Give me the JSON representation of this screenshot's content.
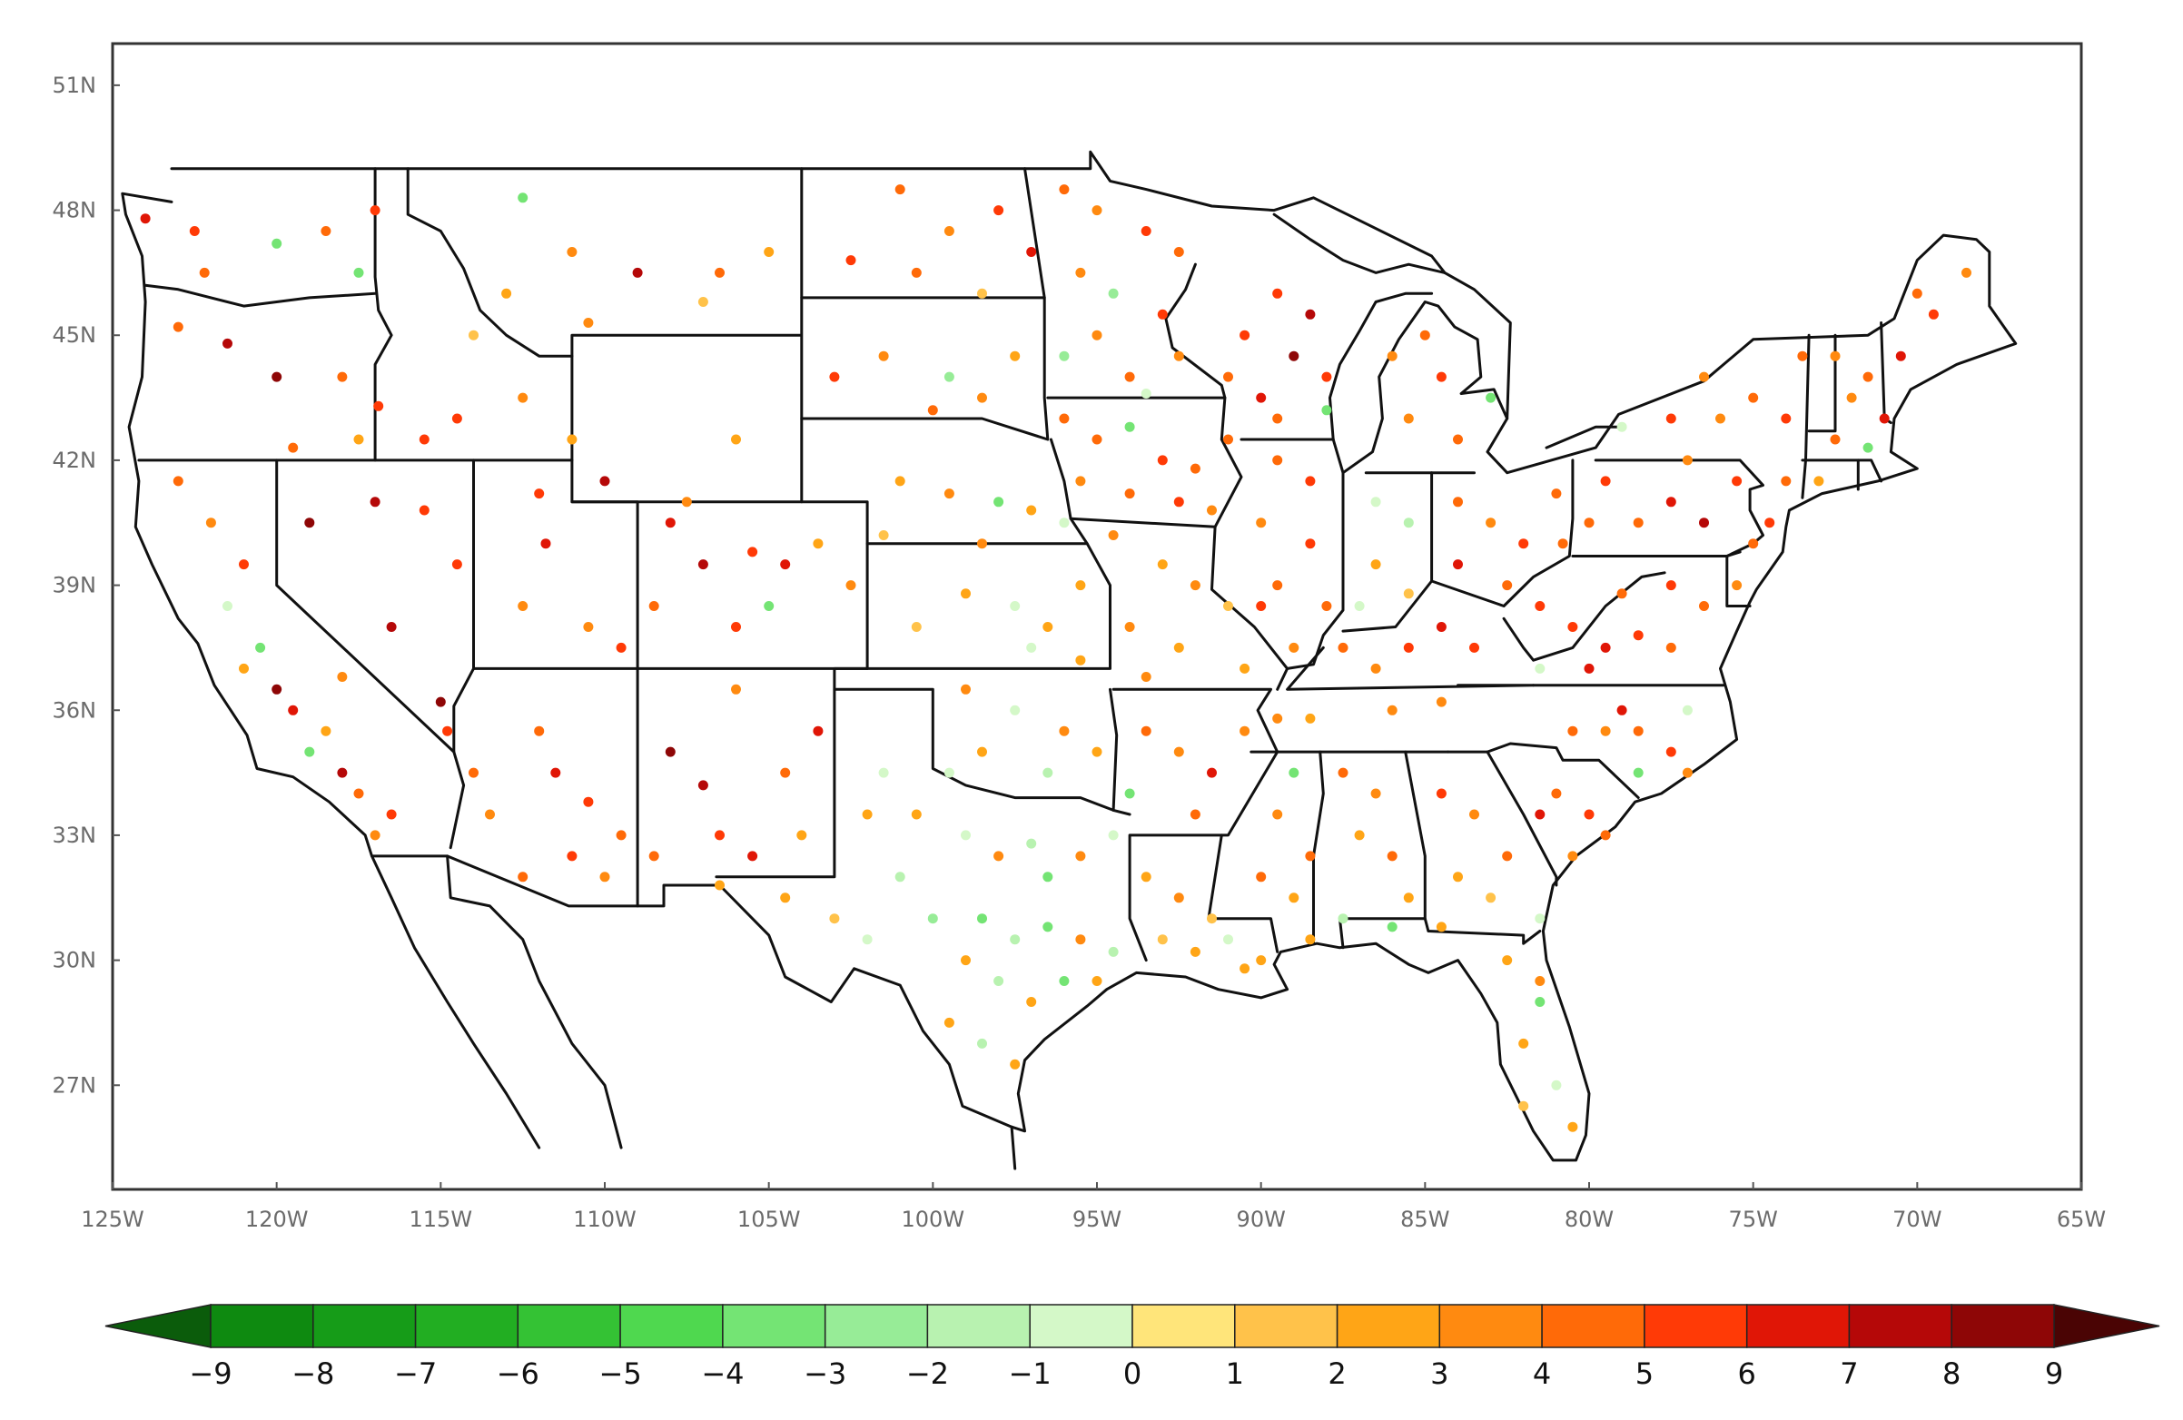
{
  "map": {
    "lat_ticks": [
      "51N",
      "48N",
      "45N",
      "42N",
      "39N",
      "36N",
      "33N",
      "30N",
      "27N"
    ],
    "lat_values": [
      51,
      48,
      45,
      42,
      39,
      36,
      33,
      30,
      27
    ],
    "lon_ticks": [
      "125W",
      "120W",
      "115W",
      "110W",
      "105W",
      "100W",
      "95W",
      "90W",
      "85W",
      "80W",
      "75W",
      "70W",
      "65W"
    ],
    "lon_values": [
      -125,
      -120,
      -115,
      -110,
      -105,
      -100,
      -95,
      -90,
      -85,
      -80,
      -75,
      -70,
      -65
    ],
    "extent": {
      "lon": [
        -125,
        -65
      ],
      "lat": [
        24.5,
        52
      ]
    }
  },
  "colorbar": {
    "labels": [
      "−9",
      "−8",
      "−7",
      "−6",
      "−5",
      "−4",
      "−3",
      "−2",
      "−1",
      "0",
      "1",
      "2",
      "3",
      "4",
      "5",
      "6",
      "7",
      "8",
      "9"
    ],
    "end_colors": [
      "#0b5c0b",
      "#4a0404"
    ],
    "colors": [
      "#0e8a10",
      "#169c18",
      "#22ae22",
      "#34c234",
      "#4fd84f",
      "#74e474",
      "#97ec97",
      "#b8f2b0",
      "#d4f8c8",
      "#ffe57a",
      "#ffc24a",
      "#ffa516",
      "#ff8a10",
      "#ff6a08",
      "#ff3a06",
      "#e01606",
      "#b50808",
      "#8e0606"
    ]
  },
  "stations": [
    [
      -124.0,
      47.8,
      6
    ],
    [
      -122.5,
      47.5,
      5
    ],
    [
      -122.2,
      46.5,
      4
    ],
    [
      -120.0,
      47.2,
      -4
    ],
    [
      -118.5,
      47.5,
      4
    ],
    [
      -117.5,
      46.5,
      -4
    ],
    [
      -117.0,
      48.0,
      5
    ],
    [
      -123.0,
      45.2,
      4
    ],
    [
      -121.5,
      44.8,
      7
    ],
    [
      -120.0,
      44.0,
      8
    ],
    [
      -118.0,
      44.0,
      4
    ],
    [
      -116.9,
      43.3,
      5
    ],
    [
      -115.5,
      42.5,
      5
    ],
    [
      -117.5,
      42.5,
      2
    ],
    [
      -119.5,
      42.3,
      4
    ],
    [
      -112.5,
      48.3,
      -4
    ],
    [
      -111.0,
      47.0,
      3
    ],
    [
      -109.0,
      46.5,
      7
    ],
    [
      -106.5,
      46.5,
      4
    ],
    [
      -105.0,
      47.0,
      2
    ],
    [
      -107.0,
      45.8,
      1
    ],
    [
      -110.5,
      45.3,
      3
    ],
    [
      -113.0,
      46.0,
      2
    ],
    [
      -114.0,
      45.0,
      1
    ],
    [
      -112.5,
      43.5,
      3
    ],
    [
      -114.5,
      43.0,
      5
    ],
    [
      -111.0,
      42.5,
      2
    ],
    [
      -110.0,
      41.5,
      7
    ],
    [
      -107.5,
      41.0,
      3
    ],
    [
      -106.0,
      42.5,
      2
    ],
    [
      -123.0,
      41.5,
      4
    ],
    [
      -122.0,
      40.5,
      3
    ],
    [
      -121.0,
      39.5,
      5
    ],
    [
      -121.5,
      38.5,
      -1
    ],
    [
      -120.5,
      37.5,
      -4
    ],
    [
      -120.0,
      36.5,
      8
    ],
    [
      -119.5,
      36.0,
      6
    ],
    [
      -118.5,
      35.5,
      2
    ],
    [
      -118.0,
      34.5,
      7
    ],
    [
      -117.5,
      34.0,
      4
    ],
    [
      -116.5,
      33.5,
      5
    ],
    [
      -117.0,
      33.0,
      3
    ],
    [
      -119.0,
      35.0,
      -4
    ],
    [
      -118.0,
      36.8,
      3
    ],
    [
      -121.0,
      37.0,
      2
    ],
    [
      -119.0,
      40.5,
      8
    ],
    [
      -117.0,
      41.0,
      7
    ],
    [
      -115.5,
      40.8,
      5
    ],
    [
      -114.5,
      39.5,
      5
    ],
    [
      -116.5,
      38.0,
      7
    ],
    [
      -115.0,
      36.2,
      8
    ],
    [
      -114.8,
      35.5,
      5
    ],
    [
      -112.0,
      41.2,
      5
    ],
    [
      -111.8,
      40.0,
      6
    ],
    [
      -112.5,
      38.5,
      3
    ],
    [
      -110.5,
      38.0,
      3
    ],
    [
      -109.5,
      37.5,
      5
    ],
    [
      -112.0,
      35.5,
      4
    ],
    [
      -111.5,
      34.5,
      6
    ],
    [
      -110.5,
      33.8,
      5
    ],
    [
      -109.5,
      33.0,
      4
    ],
    [
      -111.0,
      32.5,
      5
    ],
    [
      -112.5,
      32.0,
      4
    ],
    [
      -110.0,
      32.0,
      3
    ],
    [
      -113.5,
      33.5,
      3
    ],
    [
      -114.0,
      34.5,
      4
    ],
    [
      -108.0,
      35.0,
      8
    ],
    [
      -107.0,
      34.2,
      7
    ],
    [
      -106.5,
      33.0,
      5
    ],
    [
      -105.5,
      32.5,
      6
    ],
    [
      -104.5,
      34.5,
      4
    ],
    [
      -103.5,
      35.5,
      6
    ],
    [
      -106.0,
      36.5,
      3
    ],
    [
      -104.0,
      33.0,
      2
    ],
    [
      -108.5,
      32.5,
      4
    ],
    [
      -108.0,
      40.5,
      6
    ],
    [
      -107.0,
      39.5,
      7
    ],
    [
      -105.5,
      39.8,
      5
    ],
    [
      -105.0,
      38.5,
      -4
    ],
    [
      -104.5,
      39.5,
      6
    ],
    [
      -103.5,
      40.0,
      2
    ],
    [
      -102.5,
      39.0,
      3
    ],
    [
      -106.0,
      38.0,
      5
    ],
    [
      -108.5,
      38.5,
      4
    ],
    [
      -101.0,
      48.5,
      4
    ],
    [
      -99.5,
      47.5,
      3
    ],
    [
      -98.0,
      48.0,
      5
    ],
    [
      -97.0,
      47.0,
      6
    ],
    [
      -100.5,
      46.5,
      4
    ],
    [
      -102.5,
      46.8,
      5
    ],
    [
      -98.5,
      46.0,
      1
    ],
    [
      -101.5,
      44.5,
      3
    ],
    [
      -99.5,
      44.0,
      -3
    ],
    [
      -98.5,
      43.5,
      3
    ],
    [
      -97.5,
      44.5,
      2
    ],
    [
      -103.0,
      44.0,
      5
    ],
    [
      -100.0,
      43.2,
      4
    ],
    [
      -101.0,
      41.5,
      2
    ],
    [
      -99.5,
      41.2,
      3
    ],
    [
      -98.0,
      41.0,
      -4
    ],
    [
      -97.0,
      40.8,
      2
    ],
    [
      -96.0,
      40.5,
      -1
    ],
    [
      -101.5,
      40.2,
      1
    ],
    [
      -98.5,
      40.0,
      3
    ],
    [
      -99.0,
      38.8,
      2
    ],
    [
      -97.5,
      38.5,
      -1
    ],
    [
      -96.5,
      38.0,
      2
    ],
    [
      -95.5,
      39.0,
      2
    ],
    [
      -100.5,
      38.0,
      1
    ],
    [
      -97.0,
      37.5,
      -1
    ],
    [
      -95.5,
      37.2,
      2
    ],
    [
      -99.0,
      36.5,
      3
    ],
    [
      -97.5,
      36.0,
      -1
    ],
    [
      -96.0,
      35.5,
      3
    ],
    [
      -95.0,
      35.0,
      2
    ],
    [
      -98.5,
      35.0,
      2
    ],
    [
      -99.5,
      34.5,
      -1
    ],
    [
      -96.5,
      34.5,
      -2
    ],
    [
      -101.5,
      34.5,
      -1
    ],
    [
      -100.5,
      33.5,
      2
    ],
    [
      -99.0,
      33.0,
      -1
    ],
    [
      -98.0,
      32.5,
      3
    ],
    [
      -97.0,
      32.8,
      -2
    ],
    [
      -96.5,
      32.0,
      -4
    ],
    [
      -95.5,
      32.5,
      3
    ],
    [
      -94.5,
      33.0,
      -1
    ],
    [
      -101.0,
      32.0,
      -2
    ],
    [
      -102.0,
      33.5,
      2
    ],
    [
      -100.0,
      31.0,
      -3
    ],
    [
      -98.5,
      31.0,
      -4
    ],
    [
      -97.5,
      30.5,
      -2
    ],
    [
      -96.5,
      30.8,
      -4
    ],
    [
      -95.5,
      30.5,
      3
    ],
    [
      -94.5,
      30.2,
      -2
    ],
    [
      -99.0,
      30.0,
      2
    ],
    [
      -98.0,
      29.5,
      -2
    ],
    [
      -97.0,
      29.0,
      2
    ],
    [
      -96.0,
      29.5,
      -4
    ],
    [
      -95.0,
      29.5,
      2
    ],
    [
      -99.5,
      28.5,
      2
    ],
    [
      -98.5,
      28.0,
      -2
    ],
    [
      -97.5,
      27.5,
      2
    ],
    [
      -104.5,
      31.5,
      2
    ],
    [
      -103.0,
      31.0,
      1
    ],
    [
      -106.5,
      31.8,
      2
    ],
    [
      -102.0,
      30.5,
      -1
    ],
    [
      -96.0,
      48.5,
      4
    ],
    [
      -95.0,
      48.0,
      3
    ],
    [
      -93.5,
      47.5,
      5
    ],
    [
      -92.5,
      47.0,
      4
    ],
    [
      -95.5,
      46.5,
      3
    ],
    [
      -94.5,
      46.0,
      -3
    ],
    [
      -93.0,
      45.5,
      5
    ],
    [
      -95.0,
      45.0,
      3
    ],
    [
      -96.0,
      44.5,
      -3
    ],
    [
      -94.0,
      44.0,
      4
    ],
    [
      -92.5,
      44.5,
      3
    ],
    [
      -93.5,
      43.6,
      -1
    ],
    [
      -96.0,
      43.0,
      4
    ],
    [
      -95.0,
      42.5,
      4
    ],
    [
      -94.0,
      42.8,
      -4
    ],
    [
      -93.0,
      42.0,
      5
    ],
    [
      -92.0,
      41.8,
      4
    ],
    [
      -91.0,
      42.5,
      4
    ],
    [
      -95.5,
      41.5,
      3
    ],
    [
      -94.0,
      41.2,
      4
    ],
    [
      -92.5,
      41.0,
      5
    ],
    [
      -91.5,
      40.8,
      3
    ],
    [
      -94.5,
      40.2,
      3
    ],
    [
      -93.0,
      39.5,
      2
    ],
    [
      -92.0,
      39.0,
      3
    ],
    [
      -91.0,
      38.5,
      1
    ],
    [
      -94.0,
      38.0,
      3
    ],
    [
      -92.5,
      37.5,
      2
    ],
    [
      -90.5,
      37.0,
      2
    ],
    [
      -93.5,
      36.8,
      3
    ],
    [
      -93.5,
      35.5,
      4
    ],
    [
      -92.5,
      35.0,
      3
    ],
    [
      -91.5,
      34.5,
      6
    ],
    [
      -90.5,
      35.5,
      3
    ],
    [
      -94.0,
      34.0,
      -4
    ],
    [
      -92.0,
      33.5,
      4
    ],
    [
      -93.5,
      32.0,
      2
    ],
    [
      -92.5,
      31.5,
      3
    ],
    [
      -91.5,
      31.0,
      1
    ],
    [
      -93.0,
      30.5,
      1
    ],
    [
      -91.0,
      30.5,
      -1
    ],
    [
      -90.0,
      30.0,
      2
    ],
    [
      -92.0,
      30.2,
      2
    ],
    [
      -90.5,
      29.8,
      2
    ],
    [
      -89.0,
      34.5,
      -4
    ],
    [
      -89.5,
      33.5,
      3
    ],
    [
      -88.5,
      32.5,
      4
    ],
    [
      -89.0,
      31.5,
      2
    ],
    [
      -88.5,
      30.5,
      2
    ],
    [
      -90.0,
      32.0,
      4
    ],
    [
      -87.5,
      34.5,
      4
    ],
    [
      -86.5,
      34.0,
      3
    ],
    [
      -87.0,
      33.0,
      2
    ],
    [
      -86.0,
      32.5,
      4
    ],
    [
      -85.5,
      31.5,
      2
    ],
    [
      -87.5,
      31.0,
      -2
    ],
    [
      -86.0,
      30.8,
      -4
    ],
    [
      -84.5,
      34.0,
      5
    ],
    [
      -83.5,
      33.5,
      3
    ],
    [
      -82.5,
      32.5,
      4
    ],
    [
      -84.0,
      32.0,
      2
    ],
    [
      -83.0,
      31.5,
      1
    ],
    [
      -81.5,
      31.0,
      -1
    ],
    [
      -84.5,
      30.8,
      2
    ],
    [
      -82.5,
      30.0,
      2
    ],
    [
      -81.5,
      29.0,
      -4
    ],
    [
      -82.0,
      28.0,
      2
    ],
    [
      -81.0,
      27.0,
      -1
    ],
    [
      -80.5,
      26.0,
      2
    ],
    [
      -82.0,
      26.5,
      1
    ],
    [
      -81.5,
      29.5,
      3
    ],
    [
      -81.0,
      34.0,
      4
    ],
    [
      -80.0,
      33.5,
      5
    ],
    [
      -79.5,
      33.0,
      4
    ],
    [
      -80.5,
      32.5,
      3
    ],
    [
      -81.5,
      33.5,
      6
    ],
    [
      -80.5,
      35.5,
      4
    ],
    [
      -79.5,
      35.5,
      3
    ],
    [
      -78.5,
      35.5,
      4
    ],
    [
      -77.5,
      35.0,
      5
    ],
    [
      -77.0,
      34.5,
      3
    ],
    [
      -78.5,
      34.5,
      -4
    ],
    [
      -79.0,
      36.0,
      6
    ],
    [
      -77.0,
      36.0,
      -1
    ],
    [
      -89.5,
      46.0,
      5
    ],
    [
      -88.5,
      45.5,
      7
    ],
    [
      -90.5,
      45.0,
      5
    ],
    [
      -89.0,
      44.5,
      8
    ],
    [
      -88.0,
      44.0,
      5
    ],
    [
      -90.0,
      43.5,
      6
    ],
    [
      -91.0,
      44.0,
      4
    ],
    [
      -89.5,
      43.0,
      4
    ],
    [
      -88.0,
      43.2,
      -4
    ],
    [
      -89.5,
      42.0,
      4
    ],
    [
      -88.5,
      41.5,
      5
    ],
    [
      -90.0,
      40.5,
      3
    ],
    [
      -88.5,
      40.0,
      5
    ],
    [
      -89.5,
      39.0,
      4
    ],
    [
      -88.0,
      38.5,
      4
    ],
    [
      -89.0,
      37.5,
      3
    ],
    [
      -90.0,
      38.5,
      5
    ],
    [
      -86.5,
      41.0,
      -1
    ],
    [
      -85.5,
      40.5,
      -2
    ],
    [
      -86.5,
      39.5,
      2
    ],
    [
      -85.5,
      38.8,
      1
    ],
    [
      -87.0,
      38.5,
      -1
    ],
    [
      -85.0,
      45.0,
      4
    ],
    [
      -84.5,
      44.0,
      5
    ],
    [
      -85.5,
      43.0,
      3
    ],
    [
      -84.0,
      42.5,
      4
    ],
    [
      -83.0,
      43.5,
      -4
    ],
    [
      -86.0,
      44.5,
      3
    ],
    [
      -84.0,
      41.0,
      4
    ],
    [
      -83.0,
      40.5,
      3
    ],
    [
      -82.0,
      40.0,
      5
    ],
    [
      -81.0,
      41.2,
      4
    ],
    [
      -82.5,
      39.0,
      4
    ],
    [
      -84.0,
      39.5,
      6
    ],
    [
      -80.8,
      40.0,
      4
    ],
    [
      -85.5,
      37.5,
      5
    ],
    [
      -84.5,
      38.0,
      6
    ],
    [
      -83.5,
      37.5,
      5
    ],
    [
      -86.5,
      37.0,
      3
    ],
    [
      -87.5,
      37.5,
      4
    ],
    [
      -86.0,
      36.0,
      3
    ],
    [
      -84.5,
      36.2,
      3
    ],
    [
      -88.5,
      35.8,
      2
    ],
    [
      -89.5,
      35.8,
      3
    ],
    [
      -81.5,
      38.5,
      5
    ],
    [
      -80.5,
      38.0,
      5
    ],
    [
      -79.5,
      37.5,
      6
    ],
    [
      -78.5,
      37.8,
      5
    ],
    [
      -77.5,
      37.5,
      4
    ],
    [
      -80.0,
      37.0,
      6
    ],
    [
      -81.5,
      37.0,
      -1
    ],
    [
      -79.0,
      38.8,
      4
    ],
    [
      -77.5,
      39.0,
      5
    ],
    [
      -76.5,
      38.5,
      4
    ],
    [
      -75.5,
      39.0,
      3
    ],
    [
      -75.0,
      40.0,
      4
    ],
    [
      -74.5,
      40.5,
      5
    ],
    [
      -79.5,
      41.5,
      5
    ],
    [
      -78.5,
      40.5,
      4
    ],
    [
      -77.5,
      41.0,
      6
    ],
    [
      -76.5,
      40.5,
      7
    ],
    [
      -75.5,
      41.5,
      5
    ],
    [
      -80.0,
      40.5,
      4
    ],
    [
      -77.0,
      42.0,
      3
    ],
    [
      -79.0,
      42.8,
      -1
    ],
    [
      -77.5,
      43.0,
      5
    ],
    [
      -76.0,
      43.0,
      3
    ],
    [
      -75.0,
      43.5,
      4
    ],
    [
      -74.0,
      43.0,
      5
    ],
    [
      -73.5,
      44.5,
      4
    ],
    [
      -76.5,
      44.0,
      3
    ],
    [
      -72.5,
      44.5,
      3
    ],
    [
      -71.5,
      44.0,
      4
    ],
    [
      -70.5,
      44.5,
      6
    ],
    [
      -69.5,
      45.5,
      5
    ],
    [
      -68.5,
      46.5,
      3
    ],
    [
      -70.0,
      46.0,
      4
    ],
    [
      -71.0,
      43.0,
      6
    ],
    [
      -72.0,
      43.5,
      3
    ],
    [
      -72.5,
      42.5,
      4
    ],
    [
      -71.5,
      42.3,
      -4
    ],
    [
      -73.0,
      41.5,
      2
    ],
    [
      -74.0,
      41.5,
      4
    ]
  ]
}
